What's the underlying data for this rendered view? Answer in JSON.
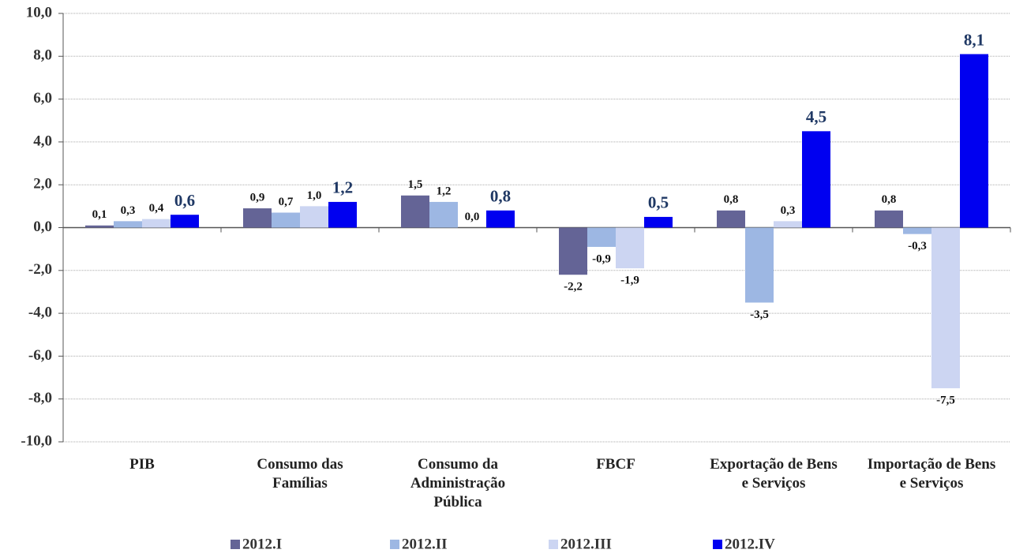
{
  "chart_data": {
    "type": "bar",
    "categories": [
      "PIB",
      "Consumo das Famílias",
      "Consumo da Administração Pública",
      "FBCF",
      "Exportação de Bens e Serviços",
      "Importação de Bens e Serviços"
    ],
    "series": [
      {
        "name": "2012.I",
        "color": "#646496",
        "values": [
          0.1,
          0.9,
          1.5,
          -2.2,
          0.8,
          0.8
        ],
        "value_labels": [
          "0,1",
          "0,9",
          "1,5",
          "-2,2",
          "0,8",
          "0,8"
        ]
      },
      {
        "name": "2012.II",
        "color": "#9db7e3",
        "values": [
          0.3,
          0.7,
          1.2,
          -0.9,
          -3.5,
          -0.3
        ],
        "value_labels": [
          "0,3",
          "0,7",
          "1,2",
          "-0,9",
          "-3,5",
          "-0,3"
        ]
      },
      {
        "name": "2012.III",
        "color": "#ccd5f2",
        "values": [
          0.4,
          1.0,
          0.0,
          -1.9,
          0.3,
          -7.5
        ],
        "value_labels": [
          "0,4",
          "1,0",
          "0,0",
          "-1,9",
          "0,3",
          "-7,5"
        ]
      },
      {
        "name": "2012.IV",
        "color": "#0000f0",
        "values": [
          0.6,
          1.2,
          0.8,
          0.5,
          4.5,
          8.1
        ],
        "value_labels": [
          "0,6",
          "1,2",
          "0,8",
          "0,5",
          "4,5",
          "8,1"
        ]
      }
    ],
    "ylim": [
      -10,
      10
    ],
    "yticks": [
      {
        "value": -10,
        "label": "-10,0"
      },
      {
        "value": -8,
        "label": "-8,0"
      },
      {
        "value": -6,
        "label": "-6,0"
      },
      {
        "value": -4,
        "label": "-4,0"
      },
      {
        "value": -2,
        "label": "-2,0"
      },
      {
        "value": 0,
        "label": "0,0"
      },
      {
        "value": 2,
        "label": "2,0"
      },
      {
        "value": 4,
        "label": "4,0"
      },
      {
        "value": 6,
        "label": "6,0"
      },
      {
        "value": 8,
        "label": "8,0"
      },
      {
        "value": 10,
        "label": "10,0"
      }
    ],
    "grid": true,
    "legend": "bottom"
  }
}
